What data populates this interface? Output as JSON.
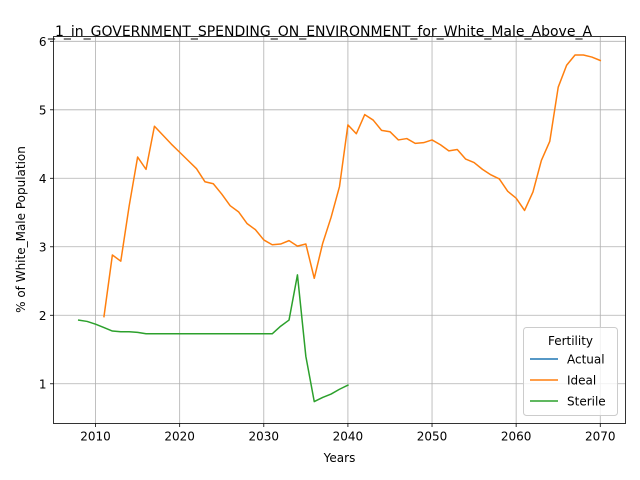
{
  "chart_data": {
    "type": "line",
    "title": "_1_in_GOVERNMENT_SPENDING_ON_ENVIRONMENT_for_White_Male_Above_A",
    "xlabel": "Years",
    "ylabel": "% of White_Male Population",
    "xlim": [
      2005,
      2073
    ],
    "ylim": [
      0.42,
      6.07
    ],
    "xticks": [
      2010,
      2020,
      2030,
      2040,
      2050,
      2060,
      2070
    ],
    "yticks": [
      1,
      2,
      3,
      4,
      5,
      6
    ],
    "grid": true,
    "legend": {
      "title": "Fertility",
      "placement": "lower-right"
    },
    "series": [
      {
        "name": "Actual",
        "color": "#1f77b4",
        "x": [],
        "y": []
      },
      {
        "name": "Ideal",
        "color": "#ff7f0e",
        "x": [
          2011,
          2012,
          2013,
          2014,
          2015,
          2016,
          2017,
          2018,
          2019,
          2020,
          2021,
          2022,
          2023,
          2024,
          2025,
          2026,
          2027,
          2028,
          2029,
          2030,
          2031,
          2032,
          2033,
          2034,
          2035,
          2036,
          2037,
          2038,
          2039,
          2040,
          2041,
          2042,
          2043,
          2044,
          2045,
          2046,
          2047,
          2048,
          2049,
          2050,
          2051,
          2052,
          2053,
          2054,
          2055,
          2056,
          2057,
          2058,
          2059,
          2060,
          2061,
          2062,
          2063,
          2064,
          2065,
          2066,
          2067,
          2068,
          2069,
          2070
        ],
        "y": [
          1.98,
          2.88,
          2.79,
          3.6,
          4.31,
          4.13,
          4.76,
          4.63,
          4.5,
          4.38,
          4.26,
          4.14,
          3.95,
          3.92,
          3.77,
          3.6,
          3.51,
          3.34,
          3.25,
          3.1,
          3.03,
          3.04,
          3.09,
          3.01,
          3.04,
          2.54,
          3.05,
          3.43,
          3.88,
          4.78,
          4.65,
          4.93,
          4.85,
          4.7,
          4.68,
          4.56,
          4.58,
          4.51,
          4.52,
          4.56,
          4.49,
          4.4,
          4.42,
          4.28,
          4.23,
          4.13,
          4.05,
          3.99,
          3.81,
          3.71,
          3.53,
          3.8,
          4.26,
          4.54,
          5.33,
          5.65,
          5.8,
          5.8,
          5.77,
          5.72
        ]
      },
      {
        "name": "Sterile",
        "color": "#2ca02c",
        "x": [
          2008,
          2009,
          2010,
          2011,
          2012,
          2013,
          2014,
          2015,
          2016,
          2017,
          2018,
          2019,
          2020,
          2021,
          2022,
          2023,
          2024,
          2025,
          2026,
          2027,
          2028,
          2029,
          2030,
          2031,
          2032,
          2033,
          2034,
          2035,
          2036,
          2037,
          2038,
          2039,
          2040
        ],
        "y": [
          1.93,
          1.91,
          1.87,
          1.82,
          1.77,
          1.76,
          1.76,
          1.75,
          1.73,
          1.73,
          1.73,
          1.73,
          1.73,
          1.73,
          1.73,
          1.73,
          1.73,
          1.73,
          1.73,
          1.73,
          1.73,
          1.73,
          1.73,
          1.73,
          1.84,
          1.93,
          2.59,
          1.4,
          0.74,
          0.8,
          0.85,
          0.92,
          0.98
        ]
      }
    ]
  }
}
